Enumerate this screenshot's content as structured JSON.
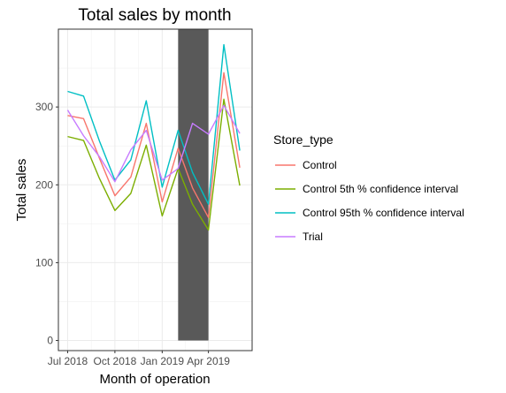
{
  "chart_data": {
    "type": "line",
    "title": "Total sales by month",
    "xlabel": "Month of operation",
    "ylabel": "Total sales",
    "x": [
      "2018-07",
      "2018-08",
      "2018-09",
      "2018-10",
      "2018-11",
      "2018-12",
      "2019-01",
      "2019-02",
      "2019-03",
      "2019-04",
      "2019-05",
      "2019-06"
    ],
    "x_tick_labels": [
      "Jul 2018",
      "Oct 2018",
      "Jan 2019",
      "Apr 2019"
    ],
    "x_tick_dates": [
      "2018-07",
      "2018-10",
      "2019-01",
      "2019-04"
    ],
    "xlim": [
      "2018-06-13",
      "2019-06-25"
    ],
    "y_ticks": [
      0,
      100,
      200,
      300
    ],
    "ylim": [
      -13,
      400
    ],
    "shaded_period": {
      "start": "2019-02-01",
      "end": "2019-04-01",
      "color": "#595959"
    },
    "grid": true,
    "legend": {
      "title": "Store_type",
      "position": "right"
    },
    "series": [
      {
        "name": "Control",
        "color": "#F8766D",
        "values": [
          289,
          285,
          234,
          186,
          210,
          279,
          178,
          247,
          196,
          158,
          344,
          222
        ]
      },
      {
        "name": "Control 5th % confidence interval",
        "color": "#7CAE00",
        "values": [
          262,
          257,
          208,
          167,
          189,
          251,
          160,
          221,
          175,
          142,
          310,
          199
        ]
      },
      {
        "name": "Control 95th % confidence interval",
        "color": "#00BFC4",
        "values": [
          320,
          314,
          256,
          206,
          232,
          308,
          197,
          270,
          216,
          175,
          380,
          244
        ]
      },
      {
        "name": "Trial",
        "color": "#C77CFF",
        "values": [
          296,
          263,
          236,
          204,
          245,
          270,
          206,
          221,
          279,
          265,
          302,
          266
        ]
      }
    ]
  }
}
